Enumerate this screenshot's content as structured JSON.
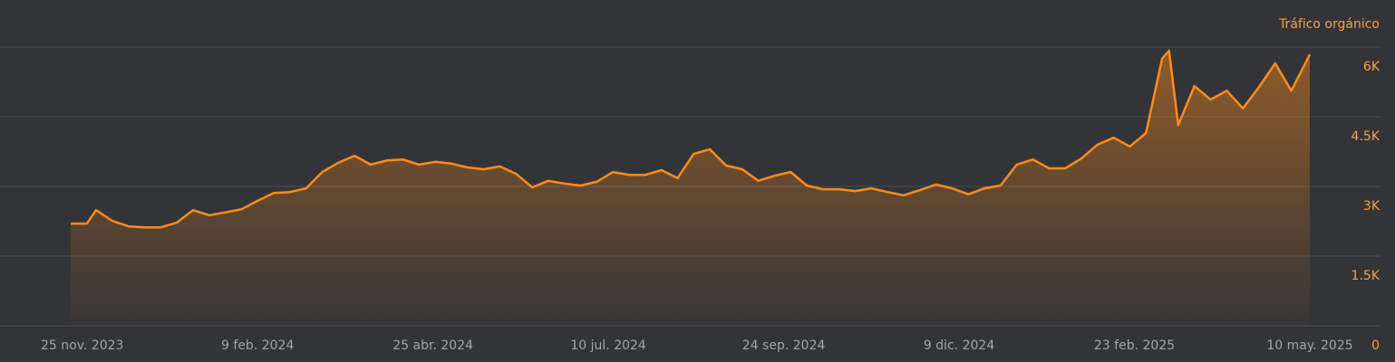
{
  "chart_data": {
    "type": "area",
    "title": "Tráfico orgánico",
    "x": [
      "2023-11-20",
      "2023-11-27",
      "2023-12-01",
      "2023-12-08",
      "2023-12-15",
      "2023-12-22",
      "2023-12-29",
      "2024-01-05",
      "2024-01-12",
      "2024-01-19",
      "2024-01-26",
      "2024-02-02",
      "2024-02-09",
      "2024-02-16",
      "2024-02-23",
      "2024-03-01",
      "2024-03-08",
      "2024-03-15",
      "2024-03-22",
      "2024-03-29",
      "2024-04-05",
      "2024-04-12",
      "2024-04-19",
      "2024-04-26",
      "2024-05-03",
      "2024-05-10",
      "2024-05-17",
      "2024-05-24",
      "2024-05-31",
      "2024-06-07",
      "2024-06-14",
      "2024-06-21",
      "2024-06-28",
      "2024-07-05",
      "2024-07-12",
      "2024-07-19",
      "2024-07-26",
      "2024-08-02",
      "2024-08-09",
      "2024-08-16",
      "2024-08-23",
      "2024-08-30",
      "2024-09-06",
      "2024-09-13",
      "2024-09-20",
      "2024-09-27",
      "2024-10-04",
      "2024-10-11",
      "2024-10-18",
      "2024-10-25",
      "2024-11-01",
      "2024-11-08",
      "2024-11-15",
      "2024-11-22",
      "2024-11-29",
      "2024-12-06",
      "2024-12-13",
      "2024-12-20",
      "2024-12-27",
      "2025-01-03",
      "2025-01-10",
      "2025-01-17",
      "2025-01-24",
      "2025-01-31",
      "2025-02-07",
      "2025-02-14",
      "2025-02-21",
      "2025-02-28",
      "2025-03-07",
      "2025-03-10",
      "2025-03-14",
      "2025-03-21",
      "2025-03-28",
      "2025-04-04",
      "2025-04-11",
      "2025-04-18",
      "2025-04-25",
      "2025-05-02",
      "2025-05-10"
    ],
    "series": [
      {
        "name": "Tráfico orgánico",
        "color": "#ff8c1a",
        "values": [
          2200,
          2200,
          2490,
          2260,
          2140,
          2120,
          2120,
          2220,
          2490,
          2380,
          2440,
          2510,
          2690,
          2860,
          2880,
          2960,
          3310,
          3510,
          3660,
          3470,
          3560,
          3580,
          3470,
          3530,
          3490,
          3410,
          3370,
          3430,
          3270,
          2980,
          3120,
          3060,
          3020,
          3100,
          3310,
          3250,
          3250,
          3350,
          3180,
          3700,
          3800,
          3450,
          3370,
          3120,
          3230,
          3310,
          3020,
          2940,
          2940,
          2900,
          2960,
          2880,
          2810,
          2920,
          3040,
          2960,
          2830,
          2960,
          3020,
          3470,
          3580,
          3390,
          3390,
          3600,
          3900,
          4050,
          3860,
          4150,
          5750,
          5920,
          4320,
          5160,
          4870,
          5060,
          4680,
          5140,
          5650,
          5060,
          5840
        ]
      }
    ],
    "xlim": [
      "2023-11-20",
      "2025-05-10"
    ],
    "xticks": [
      {
        "value": "2023-11-25",
        "label": "25 nov. 2023"
      },
      {
        "value": "2024-02-09",
        "label": "9 feb. 2024"
      },
      {
        "value": "2024-04-25",
        "label": "25 abr. 2024"
      },
      {
        "value": "2024-07-10",
        "label": "10 jul. 2024"
      },
      {
        "value": "2024-09-24",
        "label": "24 sep. 2024"
      },
      {
        "value": "2024-12-09",
        "label": "9 dic. 2024"
      },
      {
        "value": "2025-02-23",
        "label": "23 feb. 2025"
      },
      {
        "value": "2025-05-10",
        "label": "10 may. 2025"
      }
    ],
    "ylim": [
      0,
      6000
    ],
    "yticks": [
      0,
      {
        "value": 1500,
        "label": "1.5K"
      },
      {
        "value": 3000,
        "label": "3K"
      },
      {
        "value": 4500,
        "label": "4.5K"
      },
      {
        "value": 6000,
        "label": "6K"
      }
    ],
    "grid": true
  }
}
